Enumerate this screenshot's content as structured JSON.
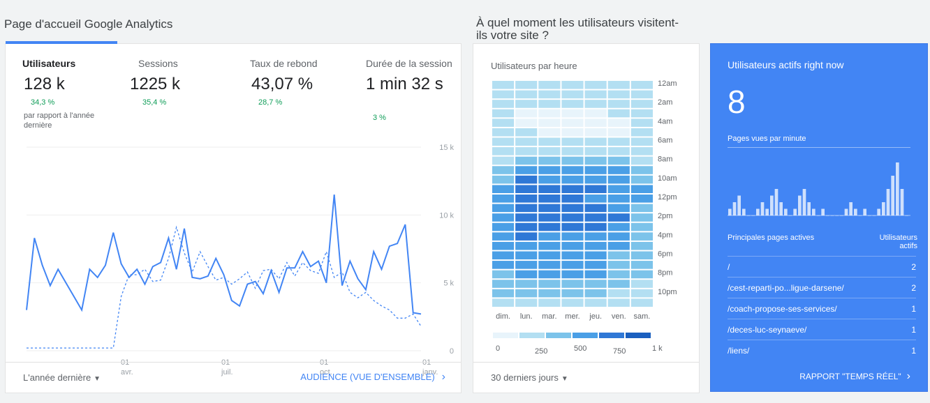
{
  "titles": {
    "overview": "Page d'accueil Google Analytics",
    "when": "À quel moment les utilisateurs visitent-ils votre site ?"
  },
  "metrics": [
    {
      "name": "Utilisateurs",
      "value": "128 k",
      "change": "34,3 %",
      "note": "par rapport à l'année dernière",
      "active": true
    },
    {
      "name": "Sessions",
      "value": "1225 k",
      "change": "35,4 %"
    },
    {
      "name": "Taux de rebond",
      "value": "43,07 %",
      "change": "28,7 %"
    },
    {
      "name": "Durée de la session",
      "value": "1 min 32 s",
      "change": "3 %"
    }
  ],
  "colors": {
    "accent": "#4285f4",
    "positive": "#0f9d58",
    "realtime_bg": "#4285f4"
  },
  "chart_data": [
    {
      "type": "line",
      "ylim": [
        0,
        15000
      ],
      "y_ticks": [
        "15 k",
        "10 k",
        "5 k",
        "0"
      ],
      "x_ticks": [
        {
          "day": "01",
          "month": "avr."
        },
        {
          "day": "01",
          "month": "juil."
        },
        {
          "day": "01",
          "month": "oct."
        },
        {
          "day": "01",
          "month": "janv."
        }
      ],
      "series": [
        {
          "style": "solid",
          "values": [
            3000,
            8300,
            6300,
            4800,
            6000,
            5000,
            4000,
            3000,
            6000,
            5400,
            6300,
            8700,
            6400,
            5400,
            6000,
            4900,
            6200,
            6500,
            8300,
            6000,
            9000,
            5400,
            5300,
            5500,
            6800,
            5600,
            3700,
            3300,
            4900,
            5100,
            4200,
            5900,
            4300,
            6100,
            6100,
            7300,
            6200,
            6600,
            5000,
            11500,
            4800,
            6600,
            5300,
            4500,
            7300,
            6000,
            7700,
            7900,
            9300,
            2800,
            2700
          ]
        },
        {
          "style": "dashed",
          "values": [
            200,
            200,
            200,
            200,
            200,
            200,
            200,
            200,
            200,
            200,
            200,
            200,
            4000,
            5600,
            5600,
            6000,
            5100,
            5200,
            6800,
            9100,
            7200,
            5800,
            7300,
            6200,
            5200,
            5400,
            4900,
            5300,
            5800,
            4600,
            5900,
            6000,
            5300,
            6500,
            5500,
            6500,
            5900,
            5700,
            7300,
            5400,
            5800,
            4300,
            3900,
            4300,
            3700,
            3300,
            3000,
            2400,
            2400,
            2700,
            1800
          ]
        }
      ]
    },
    {
      "type": "heatmap",
      "columns": [
        "dim.",
        "lun.",
        "mar.",
        "mer.",
        "jeu.",
        "ven.",
        "sam."
      ],
      "row_labels": [
        "12am",
        "2am",
        "4am",
        "6am",
        "8am",
        "10am",
        "12pm",
        "2pm",
        "4pm",
        "6pm",
        "8pm",
        "10pm"
      ],
      "rows": 24,
      "legend": [
        "0",
        "250",
        "500",
        "750",
        "1 k"
      ],
      "values": [
        [
          150,
          170,
          160,
          150,
          140,
          150,
          160
        ],
        [
          140,
          130,
          120,
          120,
          120,
          140,
          150
        ],
        [
          120,
          110,
          100,
          100,
          100,
          120,
          130
        ],
        [
          110,
          90,
          90,
          90,
          90,
          100,
          110
        ],
        [
          100,
          90,
          90,
          90,
          90,
          90,
          110
        ],
        [
          100,
          100,
          90,
          90,
          90,
          90,
          100
        ],
        [
          110,
          130,
          120,
          120,
          110,
          110,
          110
        ],
        [
          150,
          200,
          180,
          180,
          170,
          160,
          140
        ],
        [
          250,
          400,
          380,
          360,
          350,
          300,
          250
        ],
        [
          350,
          600,
          580,
          560,
          540,
          500,
          350
        ],
        [
          450,
          700,
          680,
          670,
          650,
          600,
          450
        ],
        [
          500,
          750,
          730,
          720,
          700,
          650,
          500
        ],
        [
          520,
          720,
          700,
          700,
          680,
          620,
          500
        ],
        [
          540,
          780,
          760,
          750,
          730,
          680,
          480
        ],
        [
          560,
          800,
          790,
          780,
          760,
          700,
          460
        ],
        [
          550,
          760,
          750,
          740,
          720,
          650,
          440
        ],
        [
          540,
          700,
          690,
          680,
          660,
          580,
          420
        ],
        [
          520,
          640,
          620,
          610,
          600,
          520,
          400
        ],
        [
          510,
          600,
          590,
          580,
          560,
          470,
          380
        ],
        [
          520,
          610,
          600,
          590,
          570,
          440,
          370
        ],
        [
          480,
          560,
          550,
          540,
          520,
          380,
          340
        ],
        [
          400,
          480,
          470,
          460,
          440,
          300,
          280
        ],
        [
          300,
          350,
          340,
          330,
          320,
          220,
          220
        ],
        [
          220,
          240,
          230,
          220,
          210,
          180,
          190
        ]
      ]
    },
    {
      "type": "bar",
      "values": [
        1,
        2,
        3,
        1,
        0,
        0,
        1,
        2,
        1,
        3,
        4,
        2,
        1,
        0,
        1,
        3,
        4,
        2,
        1,
        0,
        1,
        0,
        0,
        0,
        0,
        1,
        2,
        1,
        0,
        1,
        0,
        0,
        1,
        2,
        4,
        6,
        8,
        4,
        0
      ]
    }
  ],
  "overview_card": {
    "range": "L'année dernière",
    "link": "AUDIENCE (VUE D'ENSEMBLE)"
  },
  "heatmap_card": {
    "subtitle": "Utilisateurs par heure",
    "range": "30 derniers jours"
  },
  "realtime": {
    "title": "Utilisateurs actifs right now",
    "count": "8",
    "sub": "Pages vues par minute",
    "head_pages": "Principales pages actives",
    "head_users": "Utilisateurs actifs",
    "rows": [
      {
        "path": "/",
        "value": "2"
      },
      {
        "path": "/cest-reparti-po...ligue-darsene/",
        "value": "2"
      },
      {
        "path": "/coach-propose-ses-services/",
        "value": "1"
      },
      {
        "path": "/deces-luc-seynaeve/",
        "value": "1"
      },
      {
        "path": "/liens/",
        "value": "1"
      }
    ],
    "link": "RAPPORT \"TEMPS RÉEL\""
  }
}
